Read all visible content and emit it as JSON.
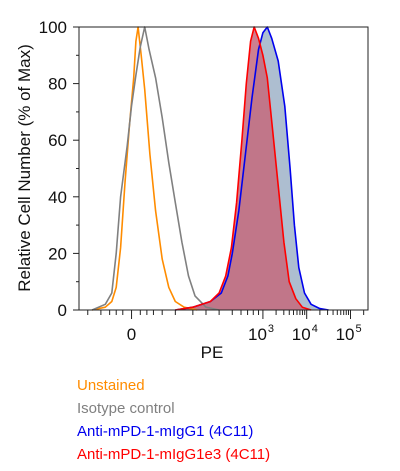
{
  "chart_data": {
    "type": "area",
    "title": "",
    "xlabel": "PE",
    "ylabel": "Relative Cell Number (% of Max)",
    "ylim": [
      0,
      100
    ],
    "y_ticks": [
      "0",
      "20",
      "40",
      "60",
      "80",
      "100"
    ],
    "x_ticks": [
      {
        "base": "0",
        "exp": ""
      },
      {
        "base": "10",
        "exp": "3"
      },
      {
        "base": "10",
        "exp": "4"
      },
      {
        "base": "10",
        "exp": "5"
      }
    ],
    "x_scale": "biexponential",
    "legend_placement": "below",
    "series": [
      {
        "name": "Unstained",
        "color": "#ff8c00",
        "fill": "none",
        "points": [
          [
            -0.9,
            0
          ],
          [
            -0.6,
            1
          ],
          [
            -0.45,
            3
          ],
          [
            -0.35,
            8
          ],
          [
            -0.25,
            22
          ],
          [
            -0.15,
            45
          ],
          [
            -0.05,
            65
          ],
          [
            0.05,
            82
          ],
          [
            0.1,
            95
          ],
          [
            0.15,
            100
          ],
          [
            0.22,
            90
          ],
          [
            0.3,
            78
          ],
          [
            0.42,
            55
          ],
          [
            0.55,
            35
          ],
          [
            0.7,
            18
          ],
          [
            0.85,
            8
          ],
          [
            1.0,
            3
          ],
          [
            1.2,
            1
          ],
          [
            1.5,
            0
          ]
        ]
      },
      {
        "name": "Isotype control",
        "color": "#808080",
        "fill": "none",
        "points": [
          [
            -0.9,
            0
          ],
          [
            -0.6,
            2
          ],
          [
            -0.45,
            6
          ],
          [
            -0.35,
            20
          ],
          [
            -0.25,
            40
          ],
          [
            -0.1,
            58
          ],
          [
            0.0,
            72
          ],
          [
            0.1,
            83
          ],
          [
            0.2,
            93
          ],
          [
            0.3,
            100
          ],
          [
            0.4,
            92
          ],
          [
            0.55,
            82
          ],
          [
            0.7,
            68
          ],
          [
            0.85,
            52
          ],
          [
            1.0,
            38
          ],
          [
            1.15,
            24
          ],
          [
            1.3,
            12
          ],
          [
            1.45,
            5
          ],
          [
            1.7,
            1
          ],
          [
            2.0,
            0
          ]
        ]
      },
      {
        "name": "Anti-mPD-1-mIgG1 (4C11)",
        "color": "#0000ee",
        "fill": "#9fb3c8",
        "points": [
          [
            1.0,
            0
          ],
          [
            1.4,
            1
          ],
          [
            1.8,
            3
          ],
          [
            2.05,
            6
          ],
          [
            2.2,
            12
          ],
          [
            2.3,
            20
          ],
          [
            2.45,
            35
          ],
          [
            2.6,
            55
          ],
          [
            2.75,
            75
          ],
          [
            2.9,
            92
          ],
          [
            3.0,
            98
          ],
          [
            3.1,
            100
          ],
          [
            3.2,
            96
          ],
          [
            3.35,
            88
          ],
          [
            3.5,
            72
          ],
          [
            3.62,
            50
          ],
          [
            3.72,
            30
          ],
          [
            3.82,
            15
          ],
          [
            3.95,
            6
          ],
          [
            4.1,
            2
          ],
          [
            4.3,
            0.5
          ],
          [
            4.5,
            0
          ]
        ]
      },
      {
        "name": "Anti-mPD-1-mIgG1e3 (4C11)",
        "color": "#ff0000",
        "fill": "#c46a7c",
        "points": [
          [
            1.0,
            0
          ],
          [
            1.4,
            1
          ],
          [
            1.8,
            3
          ],
          [
            2.0,
            6
          ],
          [
            2.15,
            12
          ],
          [
            2.28,
            22
          ],
          [
            2.4,
            38
          ],
          [
            2.52,
            60
          ],
          [
            2.62,
            80
          ],
          [
            2.72,
            95
          ],
          [
            2.8,
            100
          ],
          [
            2.9,
            96
          ],
          [
            3.0,
            90
          ],
          [
            3.1,
            82
          ],
          [
            3.22,
            64
          ],
          [
            3.35,
            44
          ],
          [
            3.48,
            24
          ],
          [
            3.6,
            10
          ],
          [
            3.75,
            4
          ],
          [
            3.9,
            1
          ],
          [
            4.1,
            0
          ]
        ]
      }
    ]
  },
  "legend": [
    {
      "label": "Unstained",
      "color": "#ff8c00"
    },
    {
      "label": "Isotype control",
      "color": "#808080"
    },
    {
      "label": "Anti-mPD-1-mIgG1 (4C11)",
      "color": "#0000ee"
    },
    {
      "label": "Anti-mPD-1-mIgG1e3 (4C11)",
      "color": "#ff0000"
    }
  ]
}
